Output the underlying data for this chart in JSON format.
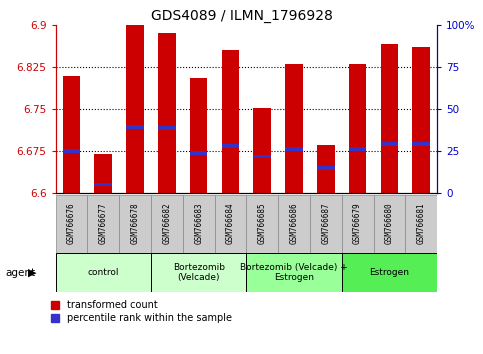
{
  "title": "GDS4089 / ILMN_1796928",
  "samples": [
    "GSM766676",
    "GSM766677",
    "GSM766678",
    "GSM766682",
    "GSM766683",
    "GSM766684",
    "GSM766685",
    "GSM766686",
    "GSM766687",
    "GSM766679",
    "GSM766680",
    "GSM766681"
  ],
  "bar_tops": [
    6.808,
    6.67,
    6.9,
    6.885,
    6.805,
    6.855,
    6.752,
    6.83,
    6.685,
    6.83,
    6.865,
    6.86
  ],
  "bar_bottom": 6.6,
  "percentile_values": [
    6.675,
    6.615,
    6.718,
    6.716,
    6.672,
    6.684,
    6.665,
    6.678,
    6.645,
    6.678,
    6.688,
    6.688
  ],
  "ylim_left": [
    6.6,
    6.9
  ],
  "yticks_left": [
    6.6,
    6.675,
    6.75,
    6.825,
    6.9
  ],
  "ytick_labels_left": [
    "6.6",
    "6.675",
    "6.75",
    "6.825",
    "6.9"
  ],
  "ytick_labels_right": [
    "0",
    "25",
    "50",
    "75",
    "100%"
  ],
  "yticks_right": [
    0,
    25,
    50,
    75,
    100
  ],
  "bar_color": "#CC0000",
  "blue_color": "#3333CC",
  "group_labels": [
    "control",
    "Bortezomib\n(Velcade)",
    "Bortezomib (Velcade) +\nEstrogen",
    "Estrogen"
  ],
  "group_starts": [
    0,
    3,
    6,
    9
  ],
  "group_counts": [
    3,
    3,
    3,
    3
  ],
  "group_colors": [
    "#ccffcc",
    "#ccffcc",
    "#99ff99",
    "#55ee55"
  ],
  "legend_red": "transformed count",
  "legend_blue": "percentile rank within the sample",
  "agent_label": "agent",
  "bg_color": "#ffffff",
  "tick_color_left": "#CC0000",
  "tick_color_right": "#0000CC",
  "sample_box_color": "#cccccc",
  "sample_box_edge": "#888888"
}
